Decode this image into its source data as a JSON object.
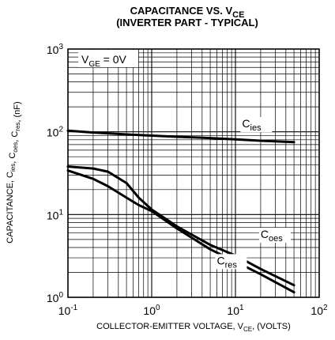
{
  "chart_data": {
    "type": "line",
    "title_line1": "CAPACITANCE VS. V",
    "title_line1_sub": "CE",
    "title_line2": "(INVERTER PART - TYPICAL)",
    "xlabel_main": "COLLECTOR-EMITTER VOLTAGE, V",
    "xlabel_sub": "CE",
    "xlabel_tail": ", (VOLTS)",
    "ylabel": "CAPACITANCE, C_ies, C_oes, C_res, (nF)",
    "x_scale": "log",
    "y_scale": "log",
    "xlim": [
      0.1,
      100
    ],
    "ylim": [
      1,
      1000
    ],
    "grid": true,
    "x_ticks": [
      {
        "base": "10",
        "exp": "-1"
      },
      {
        "base": "10",
        "exp": "0"
      },
      {
        "base": "10",
        "exp": "1"
      },
      {
        "base": "10",
        "exp": "2"
      }
    ],
    "y_ticks": [
      {
        "base": "10",
        "exp": "0"
      },
      {
        "base": "10",
        "exp": "1"
      },
      {
        "base": "10",
        "exp": "2"
      },
      {
        "base": "10",
        "exp": "3"
      }
    ],
    "annotation": {
      "main": "V",
      "sub": "GE",
      "tail": " = 0V"
    },
    "series": [
      {
        "name": "C",
        "name_sub": "ies",
        "x": [
          0.1,
          0.2,
          0.5,
          1,
          2,
          5,
          10,
          20,
          50
        ],
        "y": [
          103,
          98,
          93,
          90,
          87,
          84,
          81,
          78,
          75
        ]
      },
      {
        "name": "C",
        "name_sub": "oes",
        "x": [
          0.1,
          0.2,
          0.3,
          0.5,
          0.7,
          1,
          2,
          5,
          10,
          20,
          50
        ],
        "y": [
          38,
          36,
          33,
          24,
          16,
          11.5,
          7.2,
          4.3,
          3.2,
          2.2,
          1.4
        ]
      },
      {
        "name": "C",
        "name_sub": "res",
        "x": [
          0.1,
          0.2,
          0.3,
          0.5,
          0.7,
          1,
          2,
          5,
          10,
          20,
          50
        ],
        "y": [
          34,
          27,
          22,
          16,
          13,
          11,
          6.8,
          3.8,
          2.7,
          1.9,
          1.15
        ]
      }
    ]
  }
}
